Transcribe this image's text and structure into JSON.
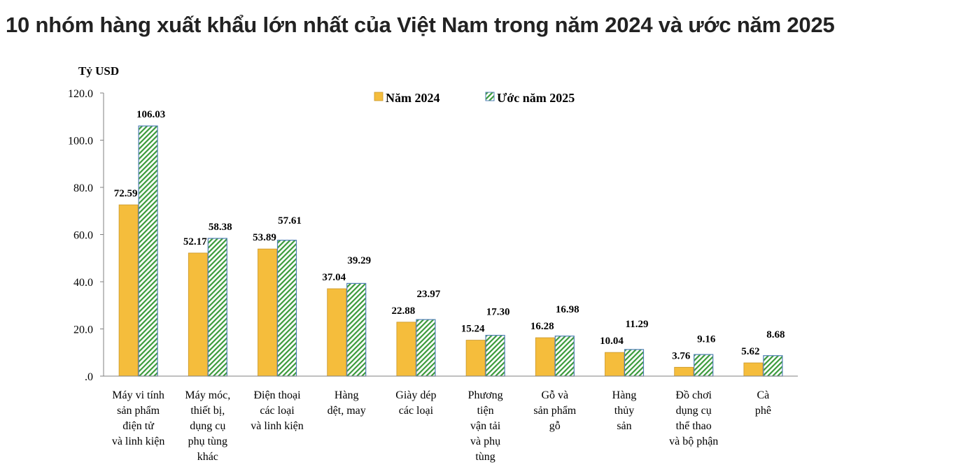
{
  "chart_data": {
    "type": "bar",
    "title": "10 nhóm hàng xuất khẩu lớn nhất của Việt Nam trong năm 2024 và ước năm 2025",
    "ylabel": "Tỷ USD",
    "xlabel": "",
    "ylim": [
      0,
      120
    ],
    "yticks": [
      {
        "value": 0,
        "label": ".0"
      },
      {
        "value": 20,
        "label": "20.0"
      },
      {
        "value": 40,
        "label": "40.0"
      },
      {
        "value": 60,
        "label": "60.0"
      },
      {
        "value": 80,
        "label": "80.0"
      },
      {
        "value": 100,
        "label": "100.0"
      },
      {
        "value": 120,
        "label": "120.0"
      }
    ],
    "grid": false,
    "legend_position": "top",
    "categories": [
      [
        "Máy vi tính",
        "sản phẩm",
        "điện tử",
        "và linh kiện"
      ],
      [
        "Máy móc,",
        "thiết bị,",
        "dụng cụ",
        "phụ tùng",
        "khác"
      ],
      [
        "Điện thoại",
        "các loại",
        "và linh kiện"
      ],
      [
        "Hàng",
        "dệt, may"
      ],
      [
        "Giày dép",
        "các loại"
      ],
      [
        "Phương",
        "tiện",
        "vận tải",
        "và phụ",
        "tùng"
      ],
      [
        "Gỗ và",
        "sản phẩm",
        "gỗ"
      ],
      [
        "Hàng",
        "thủy",
        "sản"
      ],
      [
        "Đồ chơi",
        "dụng cụ",
        "thể thao",
        "và bộ phận"
      ],
      [
        "Cà",
        "phê"
      ]
    ],
    "series": [
      {
        "name": "Năm 2024",
        "color": "#f5bd3c",
        "values": [
          72.59,
          52.17,
          53.89,
          37.04,
          22.88,
          15.24,
          16.28,
          10.04,
          3.76,
          5.62
        ],
        "labels": [
          "72.59",
          "52.17",
          "53.89",
          "37.04",
          "22.88",
          "15.24",
          "16.28",
          "10.04",
          "3.76",
          "5.62"
        ]
      },
      {
        "name": "Ước năm 2025",
        "color": "#3a9a3a",
        "border_color": "#4f7fb3",
        "pattern": "diagonal-hatch",
        "values": [
          106.03,
          58.38,
          57.61,
          39.29,
          23.97,
          17.3,
          16.98,
          11.29,
          9.16,
          8.68
        ],
        "labels": [
          "106.03",
          "58.38",
          "57.61",
          "39.29",
          "23.97",
          "17.30",
          "16.98",
          "11.29",
          "9.16",
          "8.68"
        ]
      }
    ]
  }
}
